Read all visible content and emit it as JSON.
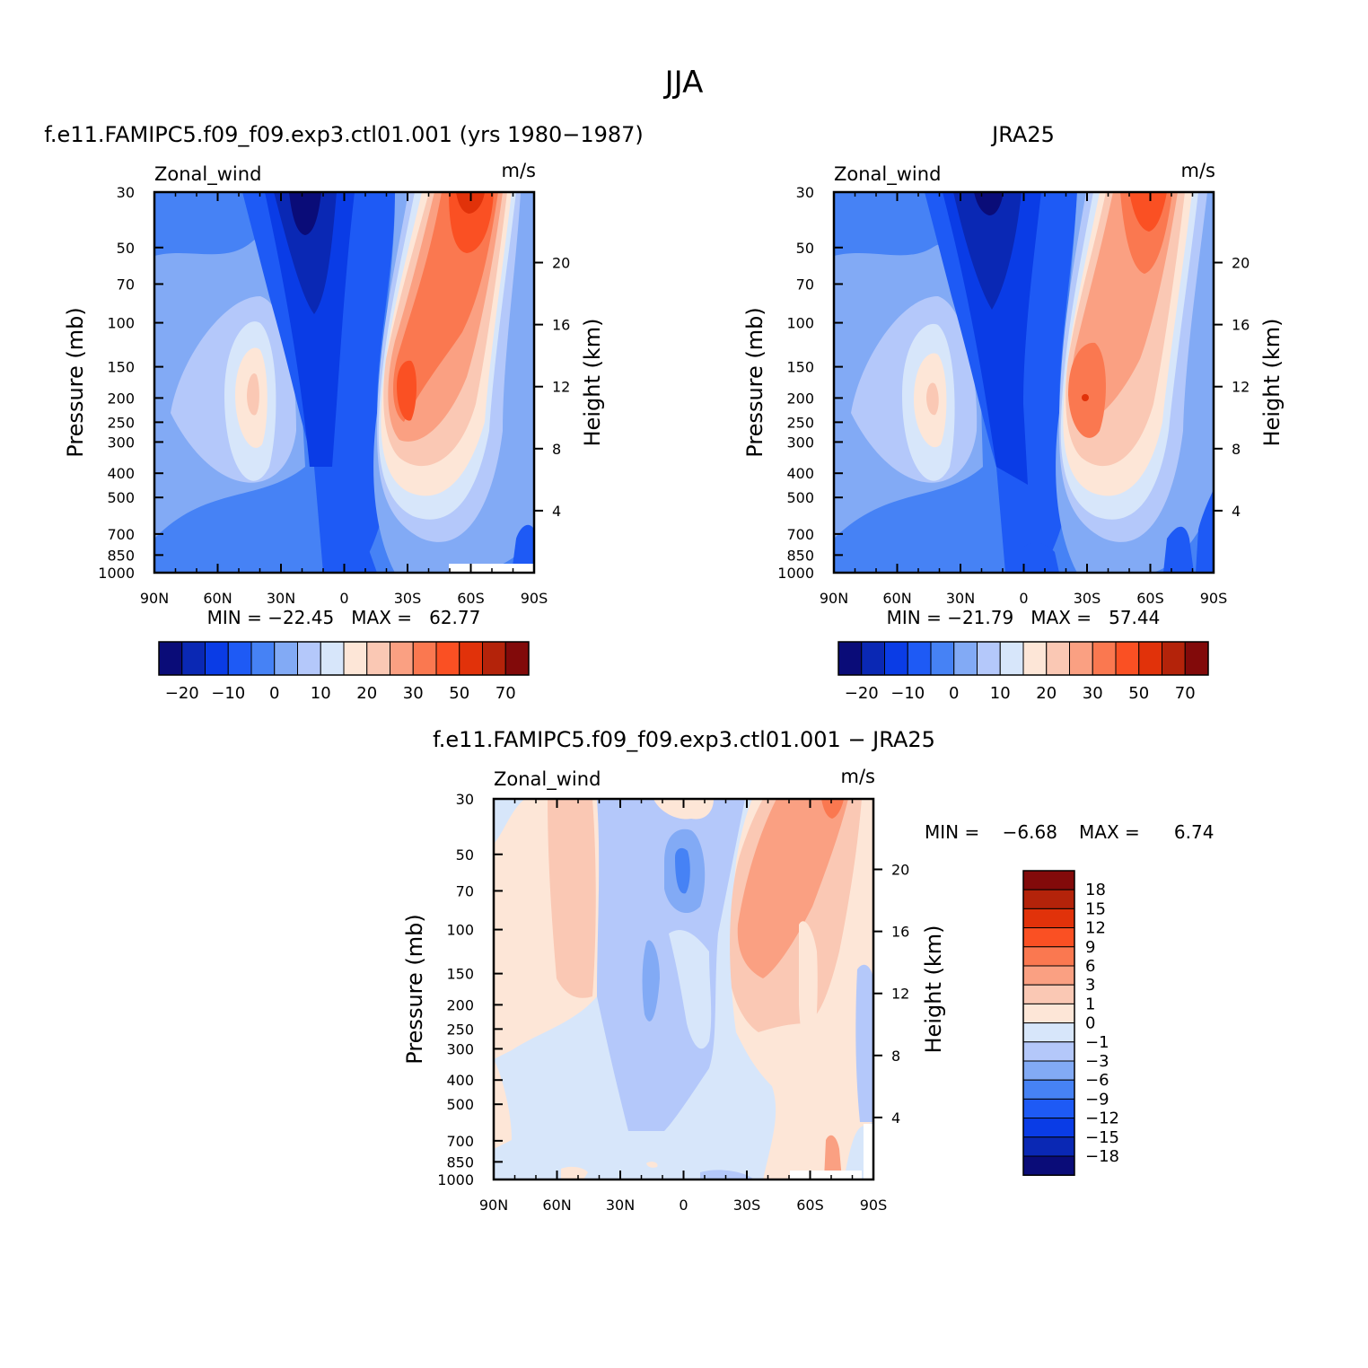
{
  "figure": {
    "title": "JJA",
    "panels": [
      {
        "id": "model",
        "title": "f.e11.FAMIPC5.f09_f09.exp3.ctl01.001 (yrs 1980−1987)",
        "left_label": "Zonal_wind",
        "right_label": "m/s",
        "ylabel": "Pressure (mb)",
        "ylabel_right": "Height (km)",
        "stats": "MIN = −22.45   MAX =   62.77"
      },
      {
        "id": "obs",
        "title": "JRA25",
        "left_label": "Zonal_wind",
        "right_label": "m/s",
        "ylabel": "Pressure (mb)",
        "ylabel_right": "Height (km)",
        "stats": "MIN = −21.79   MAX =   57.44"
      },
      {
        "id": "diff",
        "title": "f.e11.FAMIPC5.f09_f09.exp3.ctl01.001 − JRA25",
        "left_label": "Zonal_wind",
        "right_label": "m/s",
        "ylabel": "Pressure (mb)",
        "ylabel_right": "Height (km)",
        "stats_min": "MIN =    −6.68",
        "stats_max": "MAX =      6.74"
      }
    ]
  },
  "chart_data": [
    {
      "type": "heatmap",
      "title": "f.e11.FAMIPC5.f09_f09.exp3.ctl01.001 (yrs 1980−1987)",
      "variable": "Zonal_wind",
      "units": "m/s",
      "ylabel": "Pressure (mb)",
      "ylabel_right": "Height (km)",
      "x_ticks": [
        "90N",
        "60N",
        "30N",
        "0",
        "30S",
        "60S",
        "90S"
      ],
      "y_ticks": [
        30,
        50,
        70,
        100,
        150,
        200,
        250,
        300,
        400,
        500,
        700,
        850,
        1000
      ],
      "y_scale": "log",
      "y_right_ticks": [
        4,
        8,
        12,
        16,
        20
      ],
      "min": -22.45,
      "max": 62.77,
      "colorbar_labels": [
        "−20",
        "−10",
        "0",
        "10",
        "20",
        "30",
        "50",
        "70"
      ],
      "features": [
        {
          "kind": "easterly core",
          "lat": "20N",
          "pressure": 30,
          "value": -20
        },
        {
          "kind": "westerly jet",
          "lat": "30S",
          "pressure": 200,
          "value": 40
        },
        {
          "kind": "westerly jet (polar night)",
          "lat": "60S",
          "pressure": 30,
          "value": 60
        },
        {
          "kind": "westerly jet",
          "lat": "45N",
          "pressure": 200,
          "value": 20
        }
      ]
    },
    {
      "type": "heatmap",
      "title": "JRA25",
      "variable": "Zonal_wind",
      "units": "m/s",
      "ylabel": "Pressure (mb)",
      "ylabel_right": "Height (km)",
      "x_ticks": [
        "90N",
        "60N",
        "30N",
        "0",
        "30S",
        "60S",
        "90S"
      ],
      "y_ticks": [
        30,
        50,
        70,
        100,
        150,
        200,
        250,
        300,
        400,
        500,
        700,
        850,
        1000
      ],
      "y_scale": "log",
      "y_right_ticks": [
        4,
        8,
        12,
        16,
        20
      ],
      "min": -21.79,
      "max": 57.44,
      "colorbar_labels": [
        "−20",
        "−10",
        "0",
        "10",
        "20",
        "30",
        "50",
        "70"
      ],
      "features": [
        {
          "kind": "easterly core",
          "lat": "20N",
          "pressure": 30,
          "value": -20
        },
        {
          "kind": "westerly jet",
          "lat": "30S",
          "pressure": 200,
          "value": 40
        },
        {
          "kind": "westerly jet (polar night)",
          "lat": "60S",
          "pressure": 30,
          "value": 50
        },
        {
          "kind": "westerly jet",
          "lat": "45N",
          "pressure": 200,
          "value": 20
        }
      ]
    },
    {
      "type": "heatmap",
      "title": "f.e11.FAMIPC5.f09_f09.exp3.ctl01.001 − JRA25",
      "variable": "Zonal_wind",
      "units": "m/s",
      "ylabel": "Pressure (mb)",
      "ylabel_right": "Height (km)",
      "x_ticks": [
        "90N",
        "60N",
        "30N",
        "0",
        "30S",
        "60S",
        "90S"
      ],
      "y_ticks": [
        30,
        50,
        70,
        100,
        150,
        200,
        250,
        300,
        400,
        500,
        700,
        850,
        1000
      ],
      "y_scale": "log",
      "y_right_ticks": [
        4,
        8,
        12,
        16,
        20
      ],
      "min": -6.68,
      "max": 6.74,
      "colorbar_labels": [
        "18",
        "15",
        "12",
        "9",
        "6",
        "3",
        "1",
        "0",
        "−1",
        "−3",
        "−6",
        "−9",
        "−12",
        "−15",
        "−18"
      ]
    }
  ],
  "colors": {
    "main_scale": [
      "#0a0c78",
      "#0a28b4",
      "#0a3ce6",
      "#1e5af5",
      "#4682f5",
      "#82aaf5",
      "#b4c8fa",
      "#d7e6fa",
      "#fde6d7",
      "#fac8b4",
      "#faa082",
      "#fa7850",
      "#fa5023",
      "#e1320a",
      "#b4230a",
      "#820a0a"
    ],
    "diff_scale": [
      "#820a0a",
      "#b4230a",
      "#e1320a",
      "#fa5023",
      "#fa7850",
      "#faa082",
      "#fac8b4",
      "#fde6d7",
      "#d7e6fa",
      "#b4c8fa",
      "#82aaf5",
      "#4682f5",
      "#1e5af5",
      "#0a3ce6",
      "#0a28b4",
      "#0a0c78"
    ]
  }
}
